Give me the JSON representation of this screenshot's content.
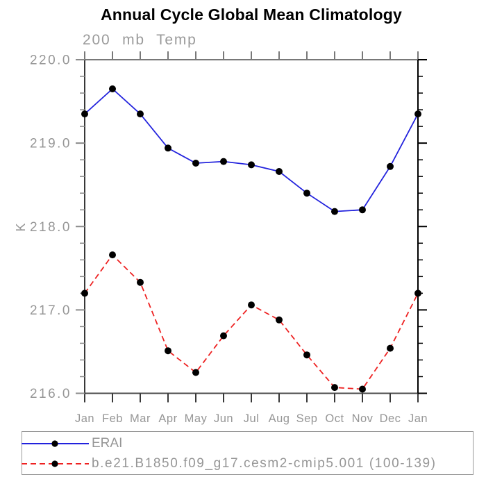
{
  "title": "Annual Cycle Global Mean Climatology",
  "subtitle": "200 mb Temp",
  "chart_data": {
    "type": "line",
    "title": "Annual Cycle Global Mean Climatology",
    "subtitle": "200 mb Temp",
    "xlabel": "",
    "ylabel": "K",
    "ylim": [
      216.0,
      220.0
    ],
    "y_major_step": 1.0,
    "y_minor_step": 0.2,
    "grid": false,
    "legend_position": "bottom-left",
    "x_tick_labels": [
      "Jan",
      "Feb",
      "Mar",
      "Apr",
      "May",
      "Jun",
      "Jul",
      "Aug",
      "Sep",
      "Oct",
      "Nov",
      "Dec",
      "Jan"
    ],
    "y_tick_labels": [
      "220.0",
      "219.0",
      "218.0",
      "217.0",
      "216.0"
    ],
    "y_tick_values": [
      220.0,
      219.0,
      218.0,
      217.0,
      216.0
    ],
    "series": [
      {
        "name": "ERAI",
        "line_style": "solid",
        "line_color": "#2222dd",
        "marker": "filled-circle",
        "marker_color": "#000000",
        "values": [
          219.35,
          219.65,
          219.35,
          218.94,
          218.76,
          218.78,
          218.74,
          218.66,
          218.4,
          218.18,
          218.2,
          218.72,
          219.35
        ]
      },
      {
        "name": "b.e21.B1850.f09_g17.cesm2-cmip5.001 (100-139)",
        "line_style": "dashed",
        "line_color": "#ee2222",
        "marker": "filled-circle",
        "marker_color": "#000000",
        "values": [
          217.2,
          217.66,
          217.33,
          216.51,
          216.25,
          216.69,
          217.06,
          216.88,
          216.46,
          216.07,
          216.05,
          216.54,
          217.2
        ]
      }
    ]
  },
  "colors": {
    "title_text": "#000000",
    "axis_label_text": "#969696",
    "top_axis": "#787878",
    "bottom_axis": "#4a4a4a",
    "left_axis": "#383838",
    "right_axis": "#000000",
    "left_ticks": "#8a8a8a",
    "marker": "#000000",
    "legend_border": "#9a9a9a"
  }
}
